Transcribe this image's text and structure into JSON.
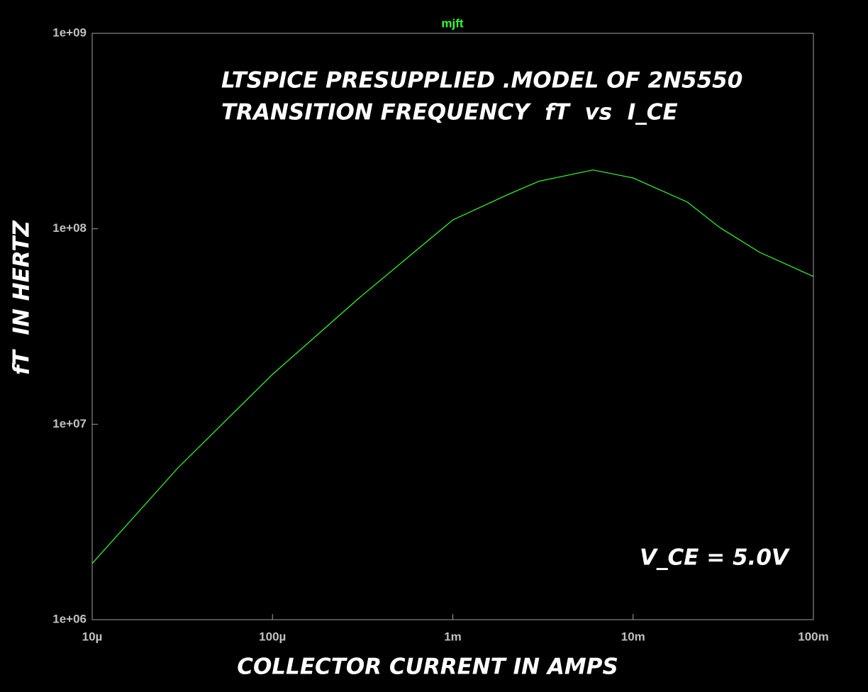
{
  "chart_data": {
    "type": "line",
    "annotations": [
      "LTSPICE PRESUPPLIED .MODEL OF 2N5550",
      "TRANSITION FREQUENCY  fT  vs  I_CE",
      "V_CE = 5.0V"
    ],
    "x_label": "COLLECTOR CURRENT IN AMPS",
    "y_label": "fT  IN HERTZ",
    "x": [
      1e-05,
      3e-05,
      0.0001,
      0.0003,
      0.001,
      0.002,
      0.003,
      0.006,
      0.01,
      0.02,
      0.03,
      0.05,
      0.1
    ],
    "series": [
      {
        "name": "mjft",
        "color": "#33ff33",
        "values": [
          1940000,
          6000000,
          18000000,
          44000000,
          111000000,
          149000000,
          175000000,
          200000000,
          182000000,
          137000000,
          102000000,
          76000000,
          57000000
        ]
      }
    ],
    "xscale": "log",
    "yscale": "log",
    "xlim": [
      1e-05,
      0.1
    ],
    "ylim": [
      1000000,
      1000000000
    ],
    "xticks": [
      {
        "value": 1e-05,
        "label": "10µ"
      },
      {
        "value": 0.0001,
        "label": "100µ"
      },
      {
        "value": 0.001,
        "label": "1m"
      },
      {
        "value": 0.01,
        "label": "10m"
      },
      {
        "value": 0.1,
        "label": "100m"
      }
    ],
    "yticks": [
      {
        "value": 1000000,
        "label": "1e+06"
      },
      {
        "value": 10000000,
        "label": "1e+07"
      },
      {
        "value": 100000000,
        "label": "1e+08"
      },
      {
        "value": 1000000000,
        "label": "1e+09"
      }
    ]
  }
}
